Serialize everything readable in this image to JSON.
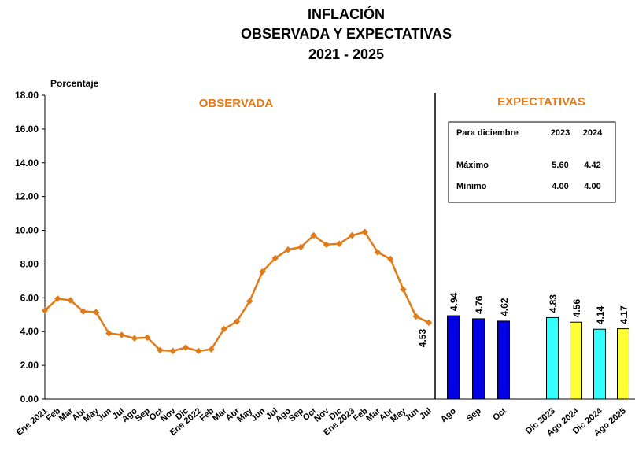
{
  "chart_data": [
    {
      "type": "line",
      "title": [
        "INFLACIÓN",
        "OBSERVADA Y EXPECTATIVAS",
        "2021 - 2025"
      ],
      "y_label": "Porcentaje",
      "section_title": "OBSERVADA",
      "categories": [
        "Ene 2021",
        "Feb",
        "Mar",
        "Abr",
        "May",
        "Jun",
        "Jul",
        "Ago",
        "Sep",
        "Oct",
        "Nov",
        "Dic",
        "Ene 2022",
        "Feb",
        "Mar",
        "Abr",
        "May",
        "Jun",
        "Jul",
        "Ago",
        "Sep",
        "Oct",
        "Nov",
        "Dic",
        "Ene 2023",
        "Feb",
        "Mar",
        "Abr",
        "May",
        "Jun",
        "Jul"
      ],
      "values": [
        5.25,
        5.95,
        5.85,
        5.2,
        5.15,
        3.9,
        3.8,
        3.6,
        3.65,
        2.9,
        2.85,
        3.05,
        2.85,
        2.95,
        4.15,
        4.6,
        5.8,
        7.55,
        8.35,
        8.85,
        9.0,
        9.7,
        9.15,
        9.2,
        9.7,
        9.9,
        8.7,
        8.3,
        6.5,
        4.9,
        4.53
      ],
      "value_labels": [
        null,
        null,
        null,
        null,
        null,
        null,
        null,
        null,
        null,
        null,
        null,
        null,
        null,
        null,
        null,
        null,
        null,
        null,
        null,
        null,
        null,
        null,
        null,
        null,
        null,
        null,
        null,
        null,
        null,
        null,
        "4.53"
      ],
      "color": "#e07b1a",
      "ylim": [
        0,
        18
      ],
      "yticks": [
        {
          "value": 0,
          "label": "0.00"
        },
        {
          "value": 2,
          "label": "2.00"
        },
        {
          "value": 4,
          "label": "4.00"
        },
        {
          "value": 6,
          "label": "6.00"
        },
        {
          "value": 8,
          "label": "8.00"
        },
        {
          "value": 10,
          "label": "10.00"
        },
        {
          "value": 12,
          "label": "12.00"
        },
        {
          "value": 14,
          "label": "14.00"
        },
        {
          "value": 16,
          "label": "16.00"
        },
        {
          "value": 18,
          "label": "18.00"
        }
      ]
    },
    {
      "type": "bar",
      "section_title": "EXPECTATIVAS",
      "categories": [
        "Ago",
        "Sep",
        "Oct",
        "Dic 2023",
        "Ago 2024",
        "Dic 2024",
        "Ago 2025"
      ],
      "values": [
        4.94,
        4.76,
        4.62,
        4.83,
        4.56,
        4.14,
        4.17
      ],
      "colors": [
        "#0000e0",
        "#0000e0",
        "#0000e0",
        "#33ffff",
        "#ffff33",
        "#33ffff",
        "#ffff33"
      ],
      "ylim": [
        0,
        18
      ],
      "table": {
        "header": [
          "Para diciembre",
          "2023",
          "2024"
        ],
        "rows": [
          [
            "Máximo",
            "5.60",
            "4.42"
          ],
          [
            "Mínimo",
            "4.00",
            "4.00"
          ]
        ]
      }
    }
  ]
}
